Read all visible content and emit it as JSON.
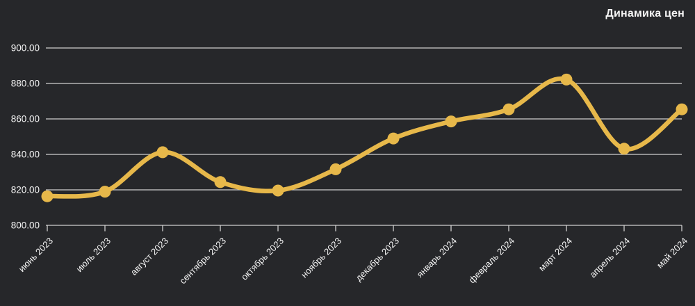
{
  "chart_data": {
    "type": "line",
    "title": "Динамика цен",
    "xlabel": "",
    "ylabel": "",
    "categories": [
      "июнь 2023",
      "июль 2023",
      "август 2023",
      "сентябрь 2023",
      "октябрь 2023",
      "ноябрь 2023",
      "декабрь 2023",
      "январь 2024",
      "февраль 2024",
      "март 2024",
      "апрель 2024",
      "май 2024"
    ],
    "series": [
      {
        "name": "Динамика цен",
        "values": [
          816.4,
          819.0,
          841.2,
          824.4,
          819.6,
          831.6,
          849.0,
          858.6,
          865.4,
          882.2,
          843.2,
          865.4
        ]
      }
    ],
    "ylim": [
      800,
      900
    ],
    "ytick_step": 20,
    "ytick_decimals": 2,
    "ytick_labels": [
      "800.00",
      "820.00",
      "840.00",
      "860.00",
      "880.00",
      "900.00"
    ],
    "grid": "horizontal",
    "legend": "none",
    "line_style": "smooth",
    "markers": "circle",
    "colors": {
      "line": "#E7B84A",
      "marker": "#E7B84A",
      "grid": "#CFCFCF",
      "axis": "#CFCFCF",
      "background": "#26272A",
      "text": "#F5F5F5"
    }
  }
}
